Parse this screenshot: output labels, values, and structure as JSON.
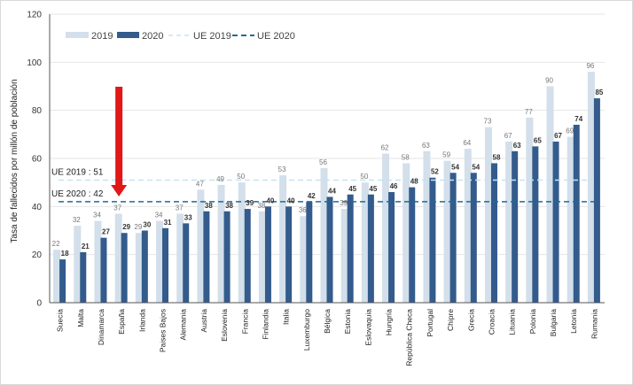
{
  "chart_data": {
    "type": "bar",
    "title": "",
    "xlabel": "",
    "ylabel": "Tasa de fallecidos por millón de población",
    "ylim": [
      0,
      120
    ],
    "yticks": [
      0,
      20,
      40,
      60,
      80,
      100,
      120
    ],
    "grid": true,
    "legend_placement": "top-left",
    "categories": [
      "Suecia",
      "Malta",
      "Dinamarca",
      "España",
      "Irlanda",
      "Paises Bajos",
      "Alemania",
      "Austria",
      "Eslovenia",
      "Francia",
      "Finlandia",
      "Italia",
      "Luxemburgo",
      "Bélgica",
      "Estonia",
      "Eslovaquia",
      "Hungría",
      "República Checa",
      "Portugal",
      "Chipre",
      "Grecia",
      "Croacia",
      "Lituania",
      "Polonia",
      "Bulgaria",
      "Letonia",
      "Rumania"
    ],
    "series": [
      {
        "name": "2019",
        "color": "#d3dfea",
        "values": [
          22,
          32,
          34,
          37,
          29,
          34,
          37,
          47,
          49,
          50,
          38,
          53,
          36,
          56,
          39,
          50,
          62,
          58,
          63,
          59,
          64,
          73,
          67,
          77,
          90,
          69,
          96
        ]
      },
      {
        "name": "2020",
        "color": "#335b8c",
        "values": [
          18,
          21,
          27,
          29,
          30,
          31,
          33,
          38,
          38,
          39,
          40,
          40,
          42,
          44,
          45,
          45,
          46,
          48,
          52,
          54,
          54,
          58,
          63,
          65,
          67,
          74,
          85
        ]
      }
    ],
    "reference_lines": [
      {
        "name": "UE 2019",
        "value": 51,
        "color": "#c5e3f2",
        "label": "UE 2019 : 51"
      },
      {
        "name": "UE 2020",
        "value": 42,
        "color": "#1f6b94",
        "label": "UE 2020 : 42"
      }
    ],
    "annotation": {
      "type": "red-arrow-down",
      "target": "España",
      "color": "#e01818"
    }
  }
}
